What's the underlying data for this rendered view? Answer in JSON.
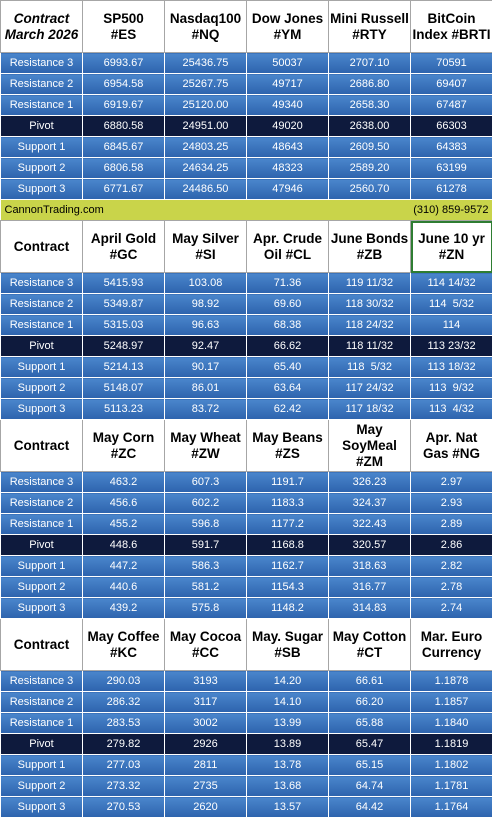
{
  "banner": {
    "site": "CannonTrading.com",
    "phone": "(310) 859-9572"
  },
  "row_labels": [
    "Resistance 3",
    "Resistance 2",
    "Resistance 1",
    "Pivot",
    "Support 1",
    "Support 2",
    "Support 3"
  ],
  "sections": [
    {
      "header_first": "Contract\nMarch 2026",
      "headers": [
        "SP500\n#ES",
        "Nasdaq100\n#NQ",
        "Dow Jones\n#YM",
        "Mini Russell\n#RTY",
        "BitCoin\nIndex #BRTI"
      ],
      "rows": [
        [
          "6993.67",
          "25436.75",
          "50037",
          "2707.10",
          "70591"
        ],
        [
          "6954.58",
          "25267.75",
          "49717",
          "2686.80",
          "69407"
        ],
        [
          "6919.67",
          "25120.00",
          "49340",
          "2658.30",
          "67487"
        ],
        [
          "6880.58",
          "24951.00",
          "49020",
          "2638.00",
          "66303"
        ],
        [
          "6845.67",
          "24803.25",
          "48643",
          "2609.50",
          "64383"
        ],
        [
          "6806.58",
          "24634.25",
          "48323",
          "2589.20",
          "63199"
        ],
        [
          "6771.67",
          "24486.50",
          "47946",
          "2560.70",
          "61278"
        ]
      ]
    },
    {
      "header_first": "Contract",
      "headers": [
        "April Gold\n#GC",
        "May Silver\n#SI",
        "Apr. Crude\nOil #CL",
        "June Bonds\n#ZB",
        "June 10 yr\n#ZN"
      ],
      "rows": [
        [
          "5415.93",
          "103.08",
          "71.36",
          "119 11/32",
          "114 14/32"
        ],
        [
          "5349.87",
          "98.92",
          "69.60",
          "118 30/32",
          "114  5/32"
        ],
        [
          "5315.03",
          "96.63",
          "68.38",
          "118 24/32",
          "114"
        ],
        [
          "5248.97",
          "92.47",
          "66.62",
          "118 11/32",
          "113 23/32"
        ],
        [
          "5214.13",
          "90.17",
          "65.40",
          "118  5/32",
          "113 18/32"
        ],
        [
          "5148.07",
          "86.01",
          "63.64",
          "117 24/32",
          "113  9/32"
        ],
        [
          "5113.23",
          "83.72",
          "62.42",
          "117 18/32",
          "113  4/32"
        ]
      ]
    },
    {
      "header_first": "Contract",
      "headers": [
        "May Corn\n#ZC",
        "May  Wheat\n#ZW",
        "May Beans\n#ZS",
        "May\nSoyMeal\n#ZM",
        "Apr. Nat\nGas #NG"
      ],
      "rows": [
        [
          "463.2",
          "607.3",
          "1191.7",
          "326.23",
          "2.97"
        ],
        [
          "456.6",
          "602.2",
          "1183.3",
          "324.37",
          "2.93"
        ],
        [
          "455.2",
          "596.8",
          "1177.2",
          "322.43",
          "2.89"
        ],
        [
          "448.6",
          "591.7",
          "1168.8",
          "320.57",
          "2.86"
        ],
        [
          "447.2",
          "586.3",
          "1162.7",
          "318.63",
          "2.82"
        ],
        [
          "440.6",
          "581.2",
          "1154.3",
          "316.77",
          "2.78"
        ],
        [
          "439.2",
          "575.8",
          "1148.2",
          "314.83",
          "2.74"
        ]
      ]
    },
    {
      "header_first": "Contract",
      "headers": [
        "May Coffee\n#KC",
        "May Cocoa\n#CC",
        "May. Sugar\n#SB",
        "May Cotton\n#CT",
        "Mar. Euro\nCurrency"
      ],
      "rows": [
        [
          "290.03",
          "3193",
          "14.20",
          "66.61",
          "1.1878"
        ],
        [
          "286.32",
          "3117",
          "14.10",
          "66.20",
          "1.1857"
        ],
        [
          "283.53",
          "3002",
          "13.99",
          "65.88",
          "1.1840"
        ],
        [
          "279.82",
          "2926",
          "13.89",
          "65.47",
          "1.1819"
        ],
        [
          "277.03",
          "2811",
          "13.78",
          "65.15",
          "1.1802"
        ],
        [
          "273.32",
          "2735",
          "13.68",
          "64.74",
          "1.1781"
        ],
        [
          "270.53",
          "2620",
          "13.57",
          "64.42",
          "1.1764"
        ]
      ]
    }
  ]
}
